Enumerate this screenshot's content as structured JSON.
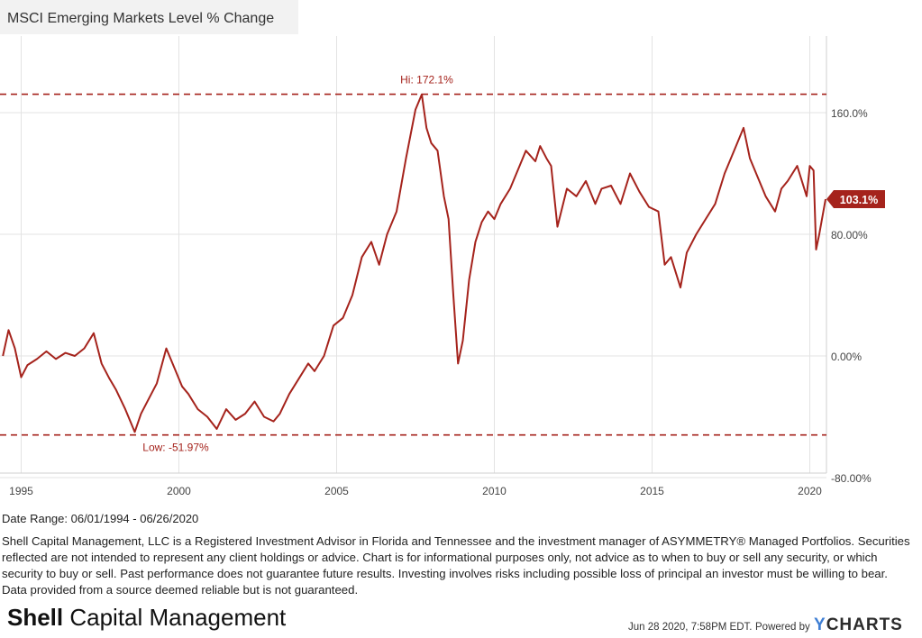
{
  "chart_data": {
    "type": "line",
    "title": "MSCI Emerging Markets Level % Change",
    "ylabel": "",
    "xlabel": "",
    "x_ticks": [
      "1995",
      "2000",
      "2005",
      "2010",
      "2015",
      "2020"
    ],
    "x_tick_values": [
      1995,
      2000,
      2005,
      2010,
      2015,
      2020
    ],
    "y_ticks": [
      "160.0%",
      "80.00%",
      "0.00%",
      "-80.00%"
    ],
    "y_tick_values": [
      160,
      80,
      0,
      -80
    ],
    "xlim": [
      1994.42,
      2020.5
    ],
    "ylim": [
      -80,
      200
    ],
    "series": [
      {
        "name": "MSCI Emerging Markets Level % Change",
        "color": "#a5231c",
        "x": [
          1994.42,
          1994.6,
          1994.8,
          1995.0,
          1995.2,
          1995.5,
          1995.8,
          1996.1,
          1996.4,
          1996.7,
          1997.0,
          1997.3,
          1997.55,
          1997.8,
          1998.0,
          1998.3,
          1998.6,
          1998.8,
          1999.0,
          1999.3,
          1999.6,
          1999.9,
          2000.1,
          2000.3,
          2000.6,
          2000.9,
          2001.2,
          2001.5,
          2001.8,
          2002.1,
          2002.4,
          2002.7,
          2003.0,
          2003.2,
          2003.5,
          2003.8,
          2004.1,
          2004.3,
          2004.6,
          2004.9,
          2005.2,
          2005.5,
          2005.8,
          2006.1,
          2006.35,
          2006.6,
          2006.9,
          2007.2,
          2007.5,
          2007.7,
          2007.85,
          2008.0,
          2008.2,
          2008.4,
          2008.55,
          2008.7,
          2008.85,
          2009.0,
          2009.2,
          2009.4,
          2009.6,
          2009.8,
          2010.0,
          2010.2,
          2010.5,
          2010.8,
          2011.0,
          2011.3,
          2011.45,
          2011.65,
          2011.8,
          2012.0,
          2012.3,
          2012.6,
          2012.9,
          2013.2,
          2013.4,
          2013.7,
          2014.0,
          2014.3,
          2014.6,
          2014.9,
          2015.2,
          2015.4,
          2015.6,
          2015.9,
          2016.1,
          2016.4,
          2016.7,
          2017.0,
          2017.3,
          2017.6,
          2017.9,
          2018.1,
          2018.3,
          2018.6,
          2018.9,
          2019.1,
          2019.3,
          2019.6,
          2019.9,
          2020.0,
          2020.12,
          2020.2,
          2020.3,
          2020.5
        ],
        "values": [
          0,
          17,
          5,
          -14,
          -6,
          -2,
          3,
          -2,
          2,
          0,
          5,
          15,
          -5,
          -15,
          -22,
          -35,
          -50,
          -38,
          -30,
          -18,
          5,
          -10,
          -20,
          -25,
          -35,
          -40,
          -48,
          -35,
          -42,
          -38,
          -30,
          -40,
          -43,
          -38,
          -25,
          -15,
          -5,
          -10,
          0,
          20,
          25,
          40,
          65,
          75,
          60,
          80,
          95,
          130,
          162,
          172,
          150,
          140,
          135,
          105,
          90,
          40,
          -5,
          10,
          50,
          75,
          88,
          95,
          90,
          100,
          110,
          125,
          135,
          128,
          138,
          130,
          125,
          85,
          110,
          105,
          115,
          100,
          110,
          112,
          100,
          120,
          108,
          98,
          95,
          60,
          65,
          45,
          68,
          80,
          90,
          100,
          120,
          135,
          150,
          130,
          120,
          105,
          95,
          110,
          115,
          125,
          105,
          125,
          122,
          70,
          80,
          103.1
        ]
      }
    ],
    "annotations": {
      "hi_label": "Hi: 172.1%",
      "hi_value": 172.1,
      "hi_x": 2007.8,
      "low_label": "Low: -51.97%",
      "low_value": -51.97,
      "low_x": 1998.7,
      "last_value_label": "103.1%",
      "last_value": 103.1
    }
  },
  "footer": {
    "date_range": "Date Range: 06/01/1994 - 06/26/2020",
    "disclaimer": "Shell Capital Management, LLC is a Registered Investment Advisor in Florida and Tennessee and the investment manager of ASYMMETRY® Managed Portfolios. Securities reflected are not intended to represent any client holdings or advice. Chart is for informational purposes only, not advice as to when to buy or sell any security, or which security to buy or sell. Past performance does not guarantee future results. Investing involves risks including possible loss of principal an investor must be willing to bear. Data provided from a source deemed reliable but is not guaranteed.",
    "brand_bold": "Shell",
    "brand_rest": " Capital Management",
    "timestamp": "Jun 28 2020, 7:58PM EDT.",
    "powered_by": "Powered by",
    "ycharts_y": "Y",
    "ycharts_rest": "CHARTS"
  },
  "colors": {
    "line": "#a5231c",
    "grid": "#e3e3e3",
    "axis_text": "#444444",
    "title_bg": "#f2f2f2"
  }
}
